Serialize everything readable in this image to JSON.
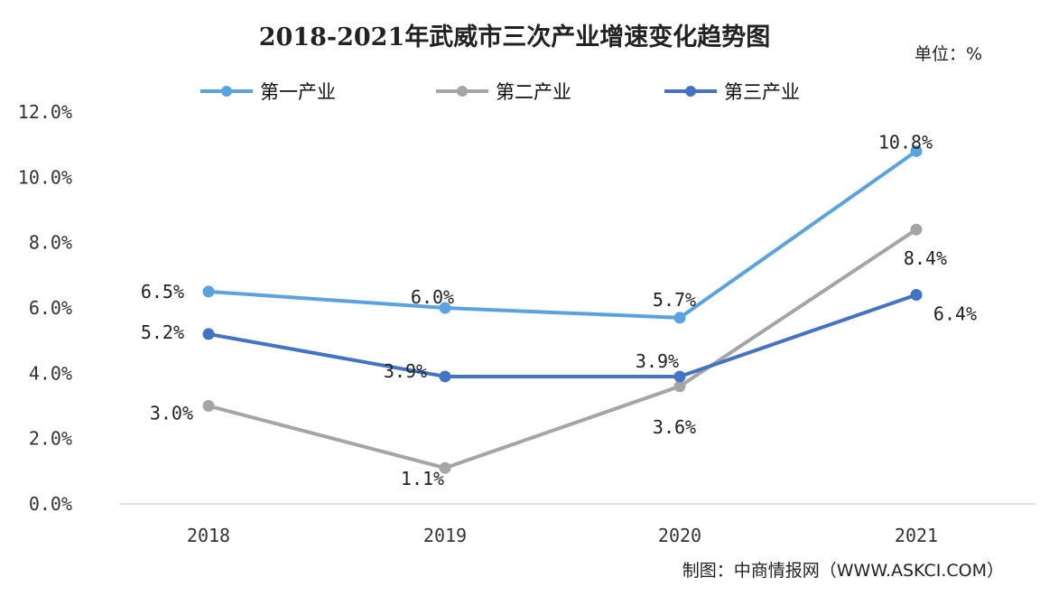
{
  "chart_data": {
    "type": "line",
    "title": "2018-2021年武威市三次产业增速变化趋势图",
    "unit_label": "单位：%",
    "source": "制图：中商情报网（WWW.ASKCI.COM）",
    "categories": [
      "2018",
      "2019",
      "2020",
      "2021"
    ],
    "yticks": [
      "0.0%",
      "2.0%",
      "4.0%",
      "6.0%",
      "8.0%",
      "10.0%",
      "12.0%"
    ],
    "ylim": [
      0,
      12
    ],
    "grid": false,
    "legend_position": "top",
    "series": [
      {
        "name": "第一产业",
        "color": "#5aa3e0",
        "values": [
          6.5,
          6.0,
          5.7,
          10.8
        ],
        "labels": [
          "6.5%",
          "6.0%",
          "5.7%",
          "10.8%"
        ]
      },
      {
        "name": "第二产业",
        "color": "#a5a5a5",
        "values": [
          3.0,
          1.1,
          3.6,
          8.4
        ],
        "labels": [
          "3.0%",
          "1.1%",
          "3.6%",
          "8.4%"
        ]
      },
      {
        "name": "第三产业",
        "color": "#4472c4",
        "values": [
          5.2,
          3.9,
          3.9,
          6.4
        ],
        "labels": [
          "5.2%",
          "3.9%",
          "3.9%",
          "6.4%"
        ]
      }
    ]
  }
}
